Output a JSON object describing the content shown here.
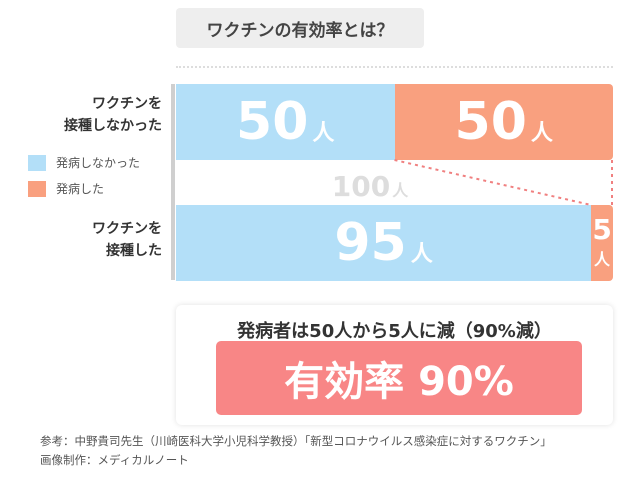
{
  "title": "ワクチンの有効率とは？",
  "legend": [
    {
      "label": "発病しなかった",
      "color": "#b3dff8"
    },
    {
      "label": "発病した",
      "color": "#f9a07f"
    }
  ],
  "chart_data": {
    "type": "bar",
    "orientation": "horizontal",
    "stacked": true,
    "unit": "人",
    "categories": [
      "ワクチンを\n接種しなかった",
      "ワクチンを\n接種した"
    ],
    "series": [
      {
        "name": "発病しなかった",
        "values": [
          50,
          95
        ],
        "color": "#b3dff8"
      },
      {
        "name": "発病した",
        "values": [
          50,
          5
        ],
        "color": "#f9a07f"
      }
    ],
    "total": 100
  },
  "rows": {
    "unvaccinated": {
      "label_line1": "ワクチンを",
      "label_line2": "接種しなかった",
      "healthy": "50",
      "sick": "50"
    },
    "vaccinated": {
      "label_line1": "ワクチンを",
      "label_line2": "接種した",
      "healthy": "95",
      "sick": "5"
    }
  },
  "unit_label": "人",
  "total_label": "100",
  "result": {
    "text": "発病者は50人から5人に減（90%減）",
    "efficacy": "有効率 90%"
  },
  "footer": {
    "line1": "参考：中野貴司先生（川崎医科大学小児科学教授）「新型コロナウイルス感染症に対するワクチン」",
    "line2": "画像制作：メディカルノート"
  }
}
